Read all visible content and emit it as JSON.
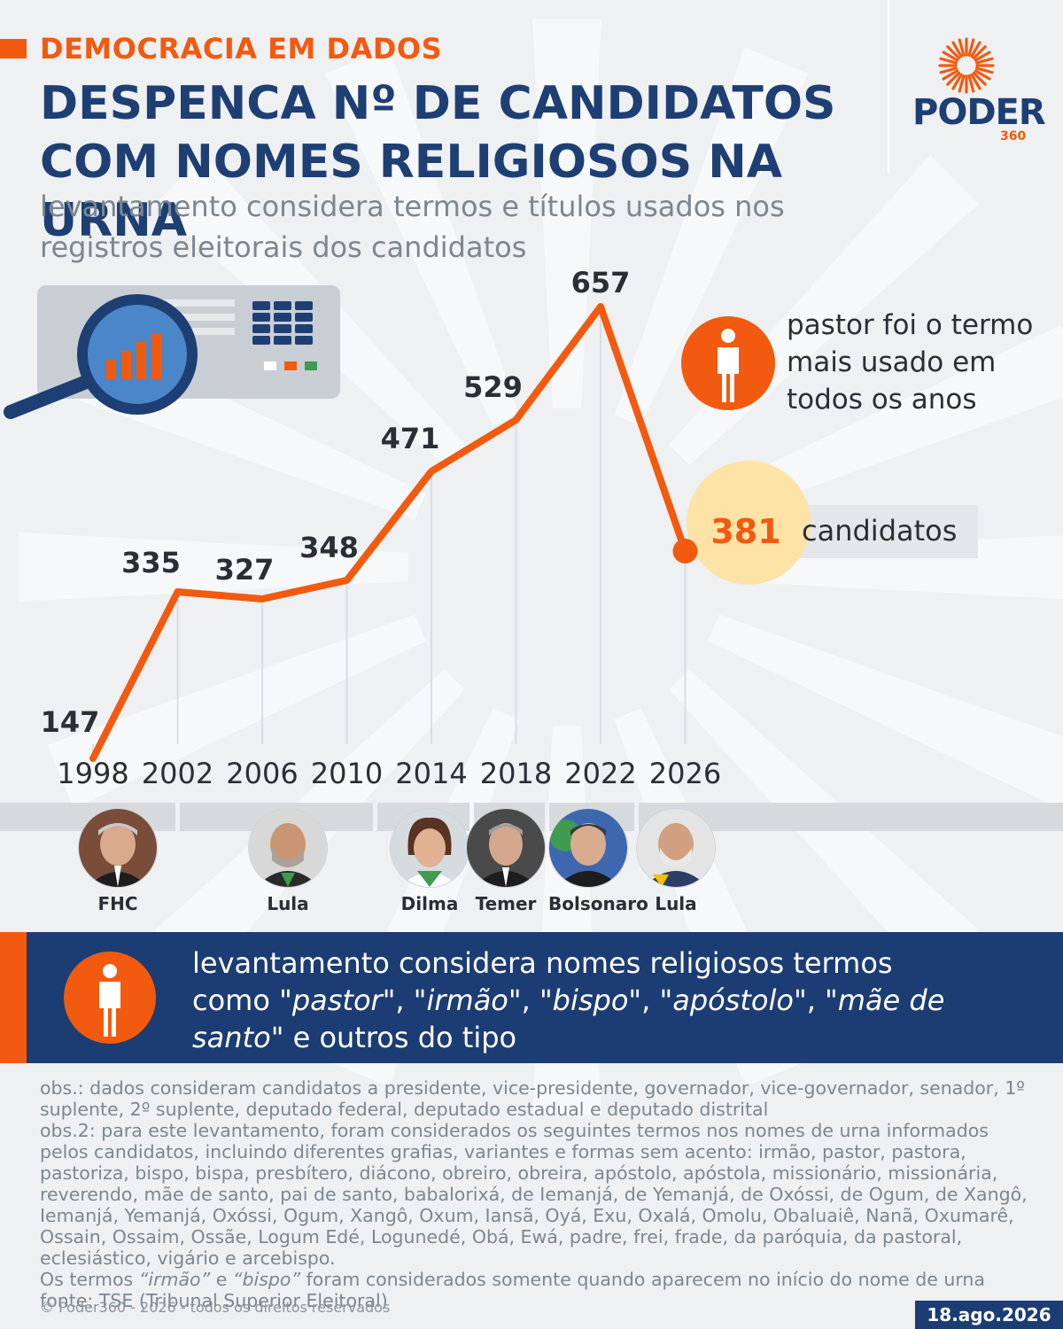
{
  "header": {
    "kicker": "DEMOCRACIA EM DADOS",
    "title": "DESPENCA Nº DE CANDIDATOS COM NOMES RELIGIOSOS NA URNA",
    "subtitle": "levantamento considera termos e títulos usados nos registros eleitorais dos candidatos"
  },
  "logo": {
    "text": "PODER",
    "number": "360"
  },
  "chart_data": {
    "type": "line",
    "title": "",
    "xlabel": "",
    "ylabel": "",
    "x": [
      "1998",
      "2002",
      "2006",
      "2010",
      "2014",
      "2018",
      "2022",
      "2026"
    ],
    "series": [
      {
        "values": [
          147,
          335,
          327,
          348,
          471,
          529,
          657,
          381
        ]
      }
    ],
    "data_labels": [
      "147",
      "335",
      "327",
      "348",
      "471",
      "529",
      "657",
      "381"
    ],
    "grid": "vertical",
    "colors": {
      "line": "#f25a0f",
      "highlight_circle": "#fde3a6"
    }
  },
  "annotations": {
    "top_note": "pastor foi o termo mais usado em todos os anos",
    "highlight_label": "candidatos"
  },
  "presidents": [
    {
      "name": "FHC"
    },
    {
      "name": "Lula"
    },
    {
      "name": "Dilma"
    },
    {
      "name": "Temer"
    },
    {
      "name": "Bolsonaro"
    },
    {
      "name": "Lula"
    }
  ],
  "callout": {
    "line1": "levantamento considera nomes religiosos termos",
    "line2_prefix": "como ",
    "terms": [
      "\"pastor\"",
      "\"irmão\"",
      "\"bispo\"",
      "\"apóstolo\"",
      "\"mãe de santo\""
    ],
    "sep": ", ",
    "suffix": " e outros do tipo"
  },
  "footer": {
    "obs1": "obs.: dados consideram candidatos a presidente, vice-presidente, governador, vice-governador, senador, 1º suplente, 2º suplente, deputado federal, deputado estadual e deputado distrital",
    "obs2": "obs.2: para este levantamento, foram considerados os seguintes termos nos nomes de urna informados pelos candidatos, incluindo diferentes grafias, variantes e formas sem acento: irmão, pastor, pastora, pastoriza, bispo, bispa, presbítero, diácono, obreiro, obreira, apóstolo, apóstola, missionário, missionária, reverendo, mãe de santo, pai de santo, babalorixá, de Iemanjá, de Yemanjá, de Oxóssi, de Ogum, de Xangô, Iemanjá, Yemanjá, Oxóssi, Ogum, Xangô, Oxum, Iansã, Oyá, Exu, Oxalá, Omolu, Obaluaiê, Nanã, Oxumarê, Ossain, Ossaim, Ossãe, Logum Edé, Logunedé, Obá, Ewá, padre, frei, frade, da paróquia, da pastoral, eclesiástico, vigário e arcebispo.",
    "obs3_prefix": "Os termos ",
    "obs3_term1": "“irmão”",
    "obs3_mid": " e ",
    "obs3_term2": "“bispo”",
    "obs3_suffix": " foram considerados somente quando aparecem no início do nome de urna",
    "source": "fonte: TSE (Tribunal Superior Eleitoral)",
    "copyright": "© Poder360 - 2026 - todos os direitos reservados",
    "date": "18.ago.2026"
  }
}
